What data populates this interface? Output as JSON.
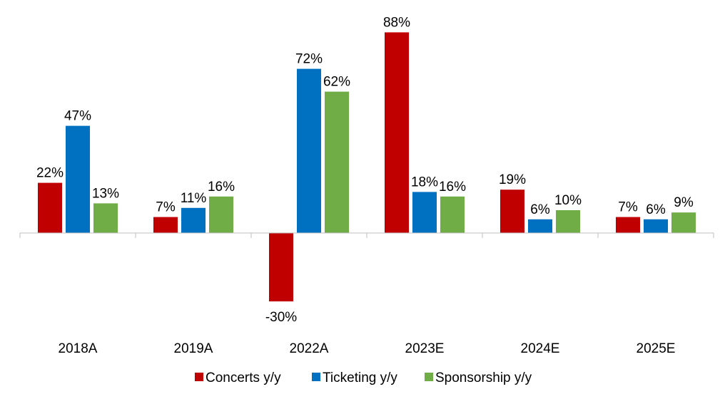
{
  "chart_data": {
    "type": "bar",
    "categories": [
      "2018A",
      "2019A",
      "2022A",
      "2023E",
      "2024E",
      "2025E"
    ],
    "series": [
      {
        "name": "Concerts y/y",
        "color": "#C00000",
        "values": [
          22,
          7,
          -30,
          88,
          19,
          7
        ],
        "labels": [
          "22%",
          "7%",
          "-30%",
          "88%",
          "19%",
          "7%"
        ]
      },
      {
        "name": "Ticketing y/y",
        "color": "#0070C0",
        "values": [
          47,
          11,
          72,
          18,
          6,
          6
        ],
        "labels": [
          "47%",
          "11%",
          "72%",
          "18%",
          "6%",
          "6%"
        ]
      },
      {
        "name": "Sponsorship y/y",
        "color": "#70AD47",
        "values": [
          13,
          16,
          62,
          16,
          10,
          9
        ],
        "labels": [
          "13%",
          "16%",
          "62%",
          "16%",
          "10%",
          "9%"
        ]
      }
    ],
    "title": "",
    "xlabel": "",
    "ylabel": "",
    "ylim": [
      -30,
      88
    ],
    "grid": false,
    "legend": "bottom-center",
    "axis_color": "#BFBFBF"
  }
}
